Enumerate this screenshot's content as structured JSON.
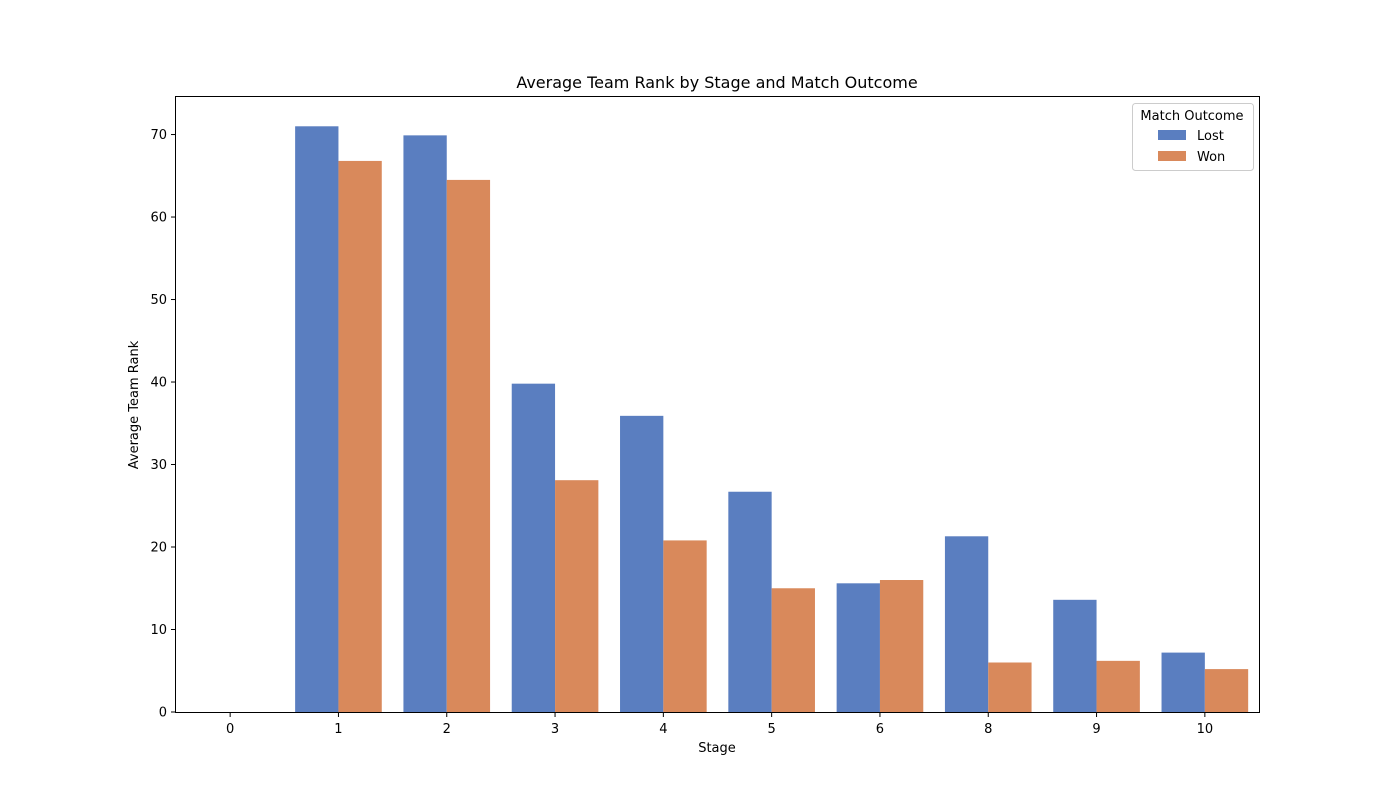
{
  "chart_data": {
    "type": "bar",
    "title": "Average Team Rank by Stage and Match Outcome",
    "xlabel": "Stage",
    "ylabel": "Average Team Rank",
    "categories": [
      "0",
      "1",
      "2",
      "3",
      "4",
      "5",
      "6",
      "8",
      "9",
      "10"
    ],
    "series": [
      {
        "name": "Lost",
        "color": "#5a7ec0",
        "values": [
          0,
          71.0,
          69.9,
          39.8,
          35.9,
          26.7,
          15.6,
          21.3,
          13.6,
          7.2
        ]
      },
      {
        "name": "Won",
        "color": "#d9895b",
        "values": [
          0,
          66.8,
          64.5,
          28.1,
          20.8,
          15.0,
          16.0,
          6.0,
          6.2,
          5.2
        ]
      }
    ],
    "ylim": [
      0,
      74.55
    ],
    "yticks": [
      0,
      10,
      20,
      30,
      40,
      50,
      60,
      70
    ],
    "grid": false,
    "legend": {
      "title": "Match Outcome",
      "placement": "top-right"
    }
  }
}
